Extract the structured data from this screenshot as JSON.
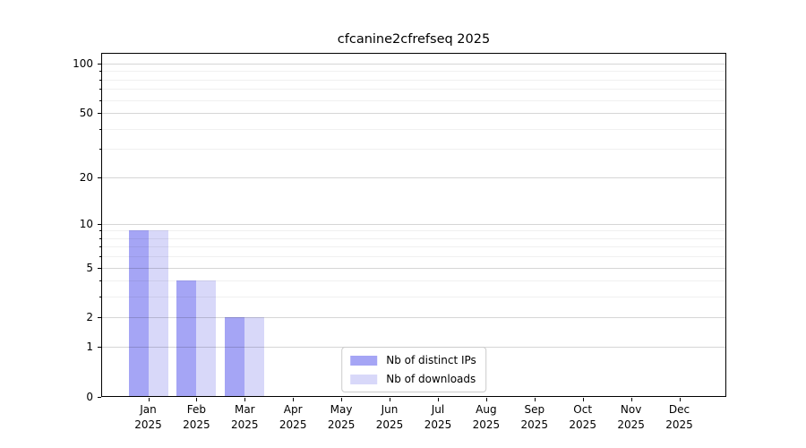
{
  "title": "cfcanine2cfrefseq 2025",
  "chart_data": {
    "type": "bar",
    "title": "cfcanine2cfrefseq 2025",
    "x_tick_months": [
      "Jan",
      "Feb",
      "Mar",
      "Apr",
      "May",
      "Jun",
      "Jul",
      "Aug",
      "Sep",
      "Oct",
      "Nov",
      "Dec"
    ],
    "x_tick_year": "2025",
    "series": [
      {
        "name": "Nb of distinct IPs",
        "color": "#a5a5f5",
        "values": [
          9,
          4,
          2,
          0,
          0,
          0,
          0,
          0,
          0,
          0,
          0,
          0
        ]
      },
      {
        "name": "Nb of downloads",
        "color": "#d8d8f9",
        "values": [
          9,
          4,
          2,
          0,
          0,
          0,
          0,
          0,
          0,
          0,
          0,
          0
        ]
      }
    ],
    "yscale": "log1p",
    "ylim": [
      0,
      116
    ],
    "y_major_ticks": [
      0,
      1,
      2,
      5,
      10,
      20,
      50,
      100
    ],
    "y_minor_gridlines": [
      3,
      4,
      6,
      7,
      8,
      9,
      30,
      40,
      60,
      70,
      80,
      90
    ],
    "grid": true,
    "grid_above_bars": true,
    "legend_position": "lower center"
  },
  "colors": {
    "bar_distinct_ips": "#a5a5f5",
    "bar_downloads": "#d8d8f9",
    "grid_major": "rgba(0,0,0,0.16)",
    "grid_minor": "rgba(0,0,0,0.06)",
    "spine": "#000000",
    "legend_border": "#cccccc",
    "background": "#ffffff",
    "text": "#000000"
  }
}
